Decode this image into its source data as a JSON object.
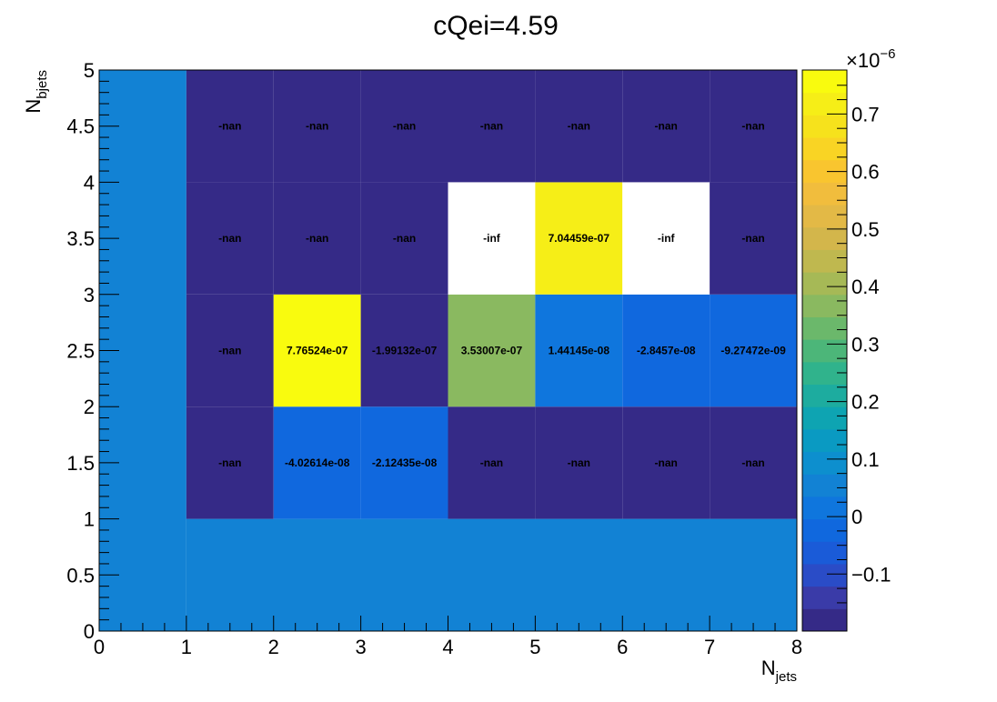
{
  "chart_data": {
    "type": "heatmap",
    "title": "cQei=4.59",
    "xlabel": {
      "main": "N",
      "sub": "jets"
    },
    "ylabel": {
      "main": "N",
      "sub": "bjets"
    },
    "xlim": [
      0,
      8
    ],
    "ylim": [
      0,
      5
    ],
    "x_ticks": [
      0,
      1,
      2,
      3,
      4,
      5,
      6,
      7,
      8
    ],
    "y_ticks": [
      "0",
      "0.5",
      "1",
      "1.5",
      "2",
      "2.5",
      "3",
      "3.5",
      "4",
      "4.5",
      "5"
    ],
    "z_range": [
      -1.99132e-07,
      7.76524e-07
    ],
    "colorbar": {
      "exponent_text": "×10",
      "exponent": "−6",
      "ticks": [
        "−0.1",
        "0",
        "0.1",
        "0.2",
        "0.3",
        "0.4",
        "0.5",
        "0.6",
        "0.7"
      ],
      "tick_values": [
        -0.1,
        0,
        0.1,
        0.2,
        0.3,
        0.4,
        0.5,
        0.6,
        0.7
      ]
    },
    "cells": [
      {
        "x": [
          0,
          1
        ],
        "y": [
          0,
          5
        ],
        "value": 0
      },
      {
        "x": [
          1,
          8
        ],
        "y": [
          0,
          1
        ],
        "value": 0
      },
      {
        "x": [
          1,
          2
        ],
        "y": [
          1,
          2
        ],
        "value": null,
        "label": "-nan"
      },
      {
        "x": [
          2,
          3
        ],
        "y": [
          1,
          2
        ],
        "value": -4.02614e-08,
        "label": "-4.02614e-08"
      },
      {
        "x": [
          3,
          4
        ],
        "y": [
          1,
          2
        ],
        "value": -2.12435e-08,
        "label": "-2.12435e-08"
      },
      {
        "x": [
          4,
          5
        ],
        "y": [
          1,
          2
        ],
        "value": null,
        "label": "-nan"
      },
      {
        "x": [
          5,
          6
        ],
        "y": [
          1,
          2
        ],
        "value": null,
        "label": "-nan"
      },
      {
        "x": [
          6,
          7
        ],
        "y": [
          1,
          2
        ],
        "value": null,
        "label": "-nan"
      },
      {
        "x": [
          7,
          8
        ],
        "y": [
          1,
          2
        ],
        "value": null,
        "label": "-nan"
      },
      {
        "x": [
          1,
          2
        ],
        "y": [
          2,
          3
        ],
        "value": null,
        "label": "-nan"
      },
      {
        "x": [
          2,
          3
        ],
        "y": [
          2,
          3
        ],
        "value": 7.76524e-07,
        "label": "7.76524e-07"
      },
      {
        "x": [
          3,
          4
        ],
        "y": [
          2,
          3
        ],
        "value": -1.99132e-07,
        "label": "-1.99132e-07"
      },
      {
        "x": [
          4,
          5
        ],
        "y": [
          2,
          3
        ],
        "value": 3.53007e-07,
        "label": "3.53007e-07"
      },
      {
        "x": [
          5,
          6
        ],
        "y": [
          2,
          3
        ],
        "value": 1.44145e-08,
        "label": "1.44145e-08"
      },
      {
        "x": [
          6,
          7
        ],
        "y": [
          2,
          3
        ],
        "value": -2.8457e-08,
        "label": "-2.8457e-08"
      },
      {
        "x": [
          7,
          8
        ],
        "y": [
          2,
          3
        ],
        "value": -9.27472e-09,
        "label": "-9.27472e-09"
      },
      {
        "x": [
          1,
          2
        ],
        "y": [
          3,
          4
        ],
        "value": null,
        "label": "-nan"
      },
      {
        "x": [
          2,
          3
        ],
        "y": [
          3,
          4
        ],
        "value": null,
        "label": "-nan"
      },
      {
        "x": [
          3,
          4
        ],
        "y": [
          3,
          4
        ],
        "value": null,
        "label": "-nan"
      },
      {
        "x": [
          4,
          5
        ],
        "y": [
          3,
          4
        ],
        "value": "-inf",
        "label": "-inf"
      },
      {
        "x": [
          5,
          6
        ],
        "y": [
          3,
          4
        ],
        "value": 7.04459e-07,
        "label": "7.04459e-07"
      },
      {
        "x": [
          6,
          7
        ],
        "y": [
          3,
          4
        ],
        "value": "-inf",
        "label": "-inf"
      },
      {
        "x": [
          7,
          8
        ],
        "y": [
          3,
          4
        ],
        "value": null,
        "label": "-nan"
      },
      {
        "x": [
          1,
          2
        ],
        "y": [
          4,
          5
        ],
        "value": null,
        "label": "-nan"
      },
      {
        "x": [
          2,
          3
        ],
        "y": [
          4,
          5
        ],
        "value": null,
        "label": "-nan"
      },
      {
        "x": [
          3,
          4
        ],
        "y": [
          4,
          5
        ],
        "value": null,
        "label": "-nan"
      },
      {
        "x": [
          4,
          5
        ],
        "y": [
          4,
          5
        ],
        "value": null,
        "label": "-nan"
      },
      {
        "x": [
          5,
          6
        ],
        "y": [
          4,
          5
        ],
        "value": null,
        "label": "-nan"
      },
      {
        "x": [
          6,
          7
        ],
        "y": [
          4,
          5
        ],
        "value": null,
        "label": "-nan"
      },
      {
        "x": [
          7,
          8
        ],
        "y": [
          4,
          5
        ],
        "value": null,
        "label": "-nan"
      }
    ],
    "palette": [
      "#352a87",
      "#3a3ba8",
      "#2a4cc7",
      "#1a5bd8",
      "#1068de",
      "#0f76dd",
      "#1282d4",
      "#0d8fce",
      "#0a9ac2",
      "#0ea4b2",
      "#1dac9f",
      "#30b38c",
      "#4cb679",
      "#6bb86b",
      "#8ab960",
      "#a6b956",
      "#bfb84f",
      "#d3b64b",
      "#e3b946",
      "#f1bd3d",
      "#f9c52f",
      "#f9d424",
      "#f6e21c",
      "#f6ee17",
      "#f9fb0e"
    ],
    "nan_color": "#352a87",
    "zero_color": "#1282d4",
    "inf_color": "#ffffff"
  }
}
